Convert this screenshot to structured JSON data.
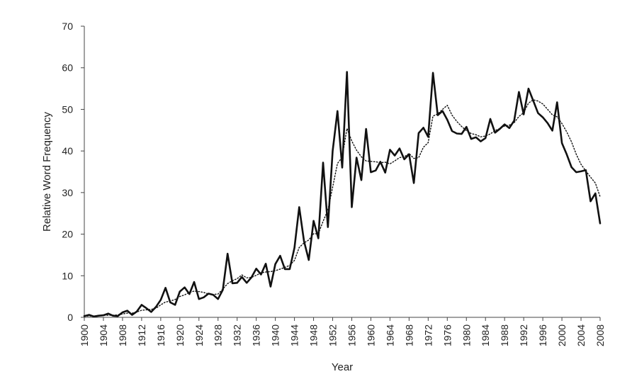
{
  "chart_data": {
    "type": "line",
    "title": "",
    "xlabel": "Year",
    "ylabel": "Relative Word Frequency",
    "xlim": [
      1900,
      2008
    ],
    "ylim": [
      0,
      70
    ],
    "grid": false,
    "legend": "none",
    "y_ticks": [
      0,
      10,
      20,
      30,
      40,
      50,
      60,
      70
    ],
    "x_ticks": [
      1900,
      1904,
      1908,
      1912,
      1916,
      1920,
      1924,
      1928,
      1932,
      1936,
      1940,
      1944,
      1948,
      1952,
      1956,
      1960,
      1964,
      1968,
      1972,
      1976,
      1980,
      1984,
      1988,
      1992,
      1996,
      2000,
      2004,
      2008
    ],
    "x": [
      1900,
      1901,
      1902,
      1903,
      1904,
      1905,
      1906,
      1907,
      1908,
      1909,
      1910,
      1911,
      1912,
      1913,
      1914,
      1915,
      1916,
      1917,
      1918,
      1919,
      1920,
      1921,
      1922,
      1923,
      1924,
      1925,
      1926,
      1927,
      1928,
      1929,
      1930,
      1931,
      1932,
      1933,
      1934,
      1935,
      1936,
      1937,
      1938,
      1939,
      1940,
      1941,
      1942,
      1943,
      1944,
      1945,
      1946,
      1947,
      1948,
      1949,
      1950,
      1951,
      1952,
      1953,
      1954,
      1955,
      1956,
      1957,
      1958,
      1959,
      1960,
      1961,
      1962,
      1963,
      1964,
      1965,
      1966,
      1967,
      1968,
      1969,
      1970,
      1971,
      1972,
      1973,
      1974,
      1975,
      1976,
      1977,
      1978,
      1979,
      1980,
      1981,
      1982,
      1983,
      1984,
      1985,
      1986,
      1987,
      1988,
      1989,
      1990,
      1991,
      1992,
      1993,
      1994,
      1995,
      1996,
      1997,
      1998,
      1999,
      2000,
      2001,
      2002,
      2003,
      2004,
      2005,
      2006,
      2007,
      2008
    ],
    "series": [
      {
        "style": "solid",
        "color": "#111111",
        "values": [
          0.3,
          0.6,
          0.2,
          0.4,
          0.5,
          0.9,
          0.4,
          0.3,
          1.2,
          1.6,
          0.6,
          1.4,
          3.0,
          2.2,
          1.3,
          2.5,
          4.2,
          7.1,
          3.6,
          3.0,
          6.2,
          7.2,
          5.6,
          8.5,
          4.4,
          4.8,
          5.7,
          5.4,
          4.4,
          6.6,
          15.3,
          8.2,
          8.3,
          9.7,
          8.3,
          9.6,
          11.7,
          10.3,
          12.9,
          7.4,
          12.8,
          14.8,
          11.6,
          11.6,
          16.7,
          26.5,
          18.3,
          13.8,
          23.2,
          19.0,
          37.2,
          21.7,
          40.0,
          49.6,
          36.0,
          59.0,
          26.5,
          38.4,
          33.0,
          45.3,
          34.9,
          35.3,
          37.4,
          34.8,
          40.3,
          38.9,
          40.6,
          38.0,
          39.2,
          32.3,
          44.3,
          45.6,
          43.4,
          58.8,
          48.6,
          49.6,
          47.5,
          44.8,
          44.2,
          44.1,
          45.8,
          42.9,
          43.3,
          42.3,
          43.1,
          47.7,
          44.4,
          45.3,
          46.4,
          45.5,
          47.3,
          54.2,
          48.8,
          55.0,
          52.1,
          49.1,
          48.1,
          46.7,
          44.9,
          51.7,
          41.9,
          39.2,
          36.1,
          34.9,
          35.1,
          35.4,
          27.9,
          29.8,
          22.6
        ]
      },
      {
        "style": "dotted",
        "color": "#111111",
        "values": [
          0.3,
          0.3,
          0.3,
          0.4,
          0.5,
          0.5,
          0.5,
          0.6,
          0.8,
          1.0,
          1.0,
          1.3,
          1.7,
          1.8,
          1.9,
          2.2,
          3.0,
          3.7,
          3.9,
          4.3,
          5.0,
          5.4,
          6.0,
          6.3,
          6.2,
          6.0,
          5.6,
          5.5,
          5.6,
          6.8,
          8.1,
          8.8,
          9.3,
          10.2,
          9.5,
          9.6,
          10.1,
          10.7,
          10.9,
          11.0,
          11.2,
          11.6,
          12.0,
          12.5,
          13.7,
          16.8,
          17.9,
          18.6,
          20.1,
          20.1,
          23.1,
          25.8,
          31.3,
          37.0,
          38.5,
          45.4,
          42.4,
          40.2,
          38.6,
          37.6,
          37.5,
          37.4,
          37.2,
          37.3,
          36.9,
          37.6,
          38.4,
          38.6,
          39.4,
          38.2,
          38.4,
          40.9,
          42.0,
          48.4,
          48.9,
          50.0,
          51.0,
          48.6,
          47.1,
          45.9,
          44.9,
          44.2,
          43.9,
          43.4,
          43.6,
          44.1,
          44.9,
          45.4,
          46.0,
          46.2,
          46.8,
          48.3,
          49.2,
          51.5,
          52.3,
          52.0,
          51.3,
          50.0,
          48.7,
          48.2,
          46.6,
          44.6,
          42.2,
          39.2,
          36.8,
          35.2,
          33.7,
          32.3,
          29.0
        ]
      }
    ]
  }
}
